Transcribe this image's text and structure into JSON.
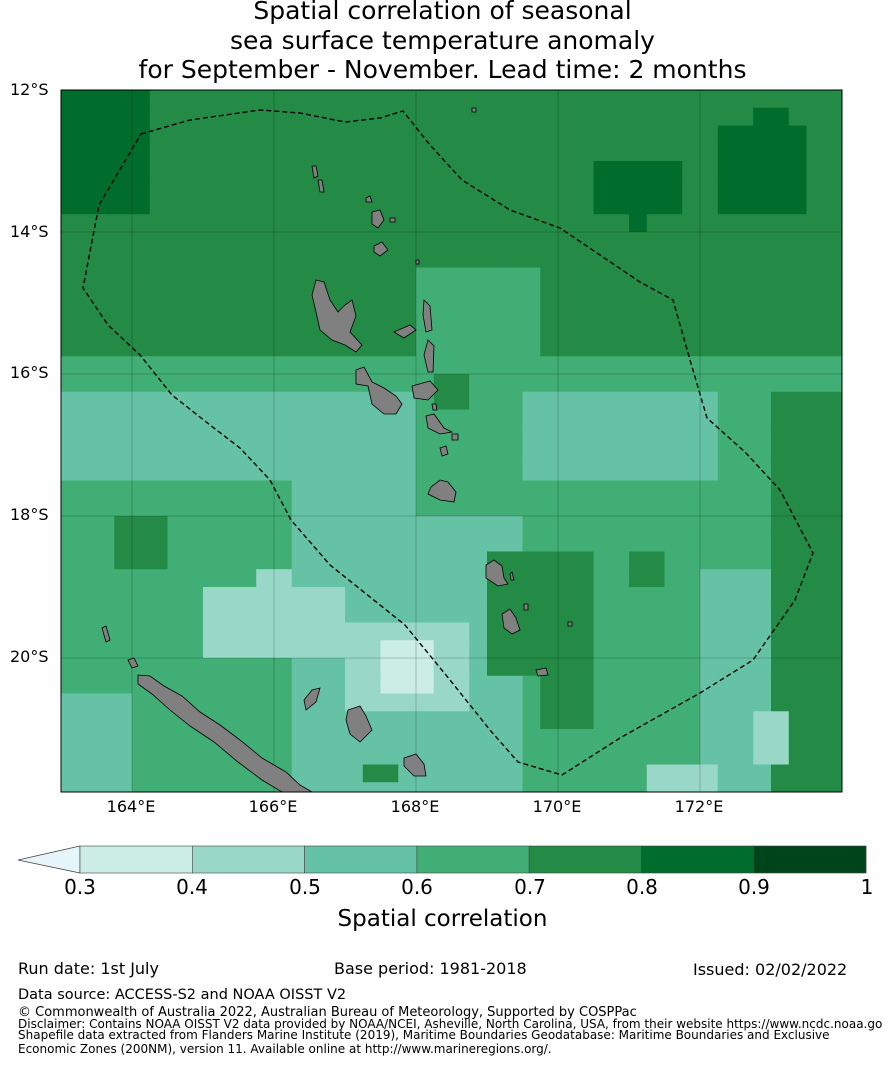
{
  "title_lines": [
    "Spatial correlation of seasonal",
    "sea surface temperature anomaly",
    "for September - November. Lead time: 2 months"
  ],
  "map": {
    "lat_labels": [
      "12°S",
      "14°S",
      "16°S",
      "18°S",
      "20°S"
    ],
    "lon_labels": [
      "164°E",
      "166°E",
      "168°E",
      "170°E",
      "172°E"
    ],
    "land_color": "#808080",
    "eez_line_color": "#000000"
  },
  "colorbar": {
    "ticks": [
      "0.3",
      "0.4",
      "0.5",
      "0.6",
      "0.7",
      "0.8",
      "0.9",
      "1"
    ],
    "colors": [
      "#e5f5f9",
      "#ccece6",
      "#99d8c9",
      "#66c2a4",
      "#41ae76",
      "#238b45",
      "#006d2c",
      "#00441b"
    ],
    "label": "Spatial correlation"
  },
  "footer": {
    "run_date": "Run date: 1st July",
    "base_period": "Base period: 1981-2018",
    "issued": "Issued: 02/02/2022",
    "data_source": "Data source: ACCESS-S2 and NOAA OISST V2",
    "copyright": "© Commonwealth of Australia 2022, Australian Bureau of Meteorology, Supported by COSPPac",
    "disclaimer_1": "Disclaimer: Contains NOAA OISST V2 data provided by NOAA/NCEI, Asheville, North Carolina, USA, from their website https://www.ncdc.noaa.go",
    "disclaimer_2": "Shapefile data extracted from Flanders Marine Institute (2019), Maritime Boundaries Geodatabase: Maritime Boundaries and Exclusive",
    "disclaimer_3": "Economic Zones (200NM), version 11. Available online at http://www.marineregions.org/."
  }
}
